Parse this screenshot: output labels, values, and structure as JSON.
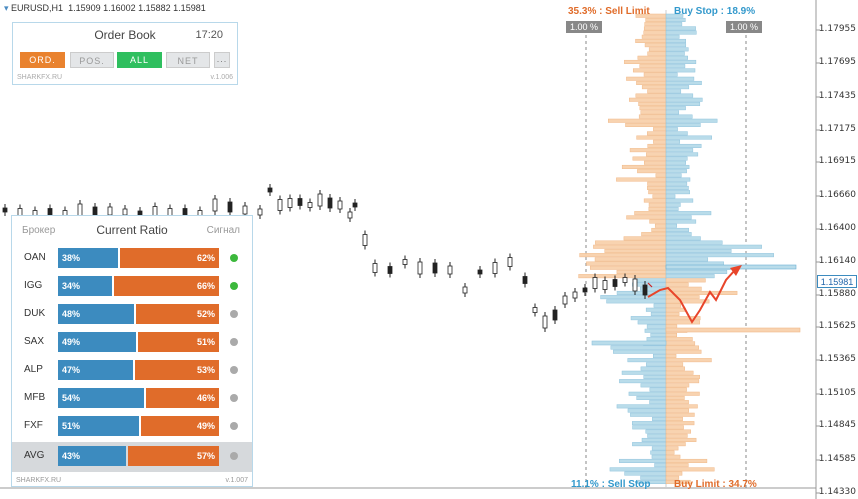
{
  "header": {
    "symbol": "EURUSD,H1",
    "ohlc": "1.15909 1.16002 1.15882 1.15981"
  },
  "price_axis": {
    "labels": [
      "1.17955",
      "1.17695",
      "1.17435",
      "1.17175",
      "1.16915",
      "1.16660",
      "1.16400",
      "1.16140",
      "1.15981",
      "1.15880",
      "1.15625",
      "1.15365",
      "1.15105",
      "1.14845",
      "1.14585",
      "1.14330"
    ],
    "current_price": "1.15981"
  },
  "order_book": {
    "title": "Order Book",
    "time": "17:20",
    "buttons": {
      "ord": "ORD.",
      "pos": "POS.",
      "all": "ALL",
      "net": "NET",
      "more": "..."
    },
    "brand": "SHARKFX.RU",
    "version": "v.1.006"
  },
  "current_ratio": {
    "col_broker": "Брокер",
    "title": "Current Ratio",
    "col_signal": "Сигнал",
    "brand": "SHARKFX.RU",
    "version": "v.1.007",
    "rows": [
      {
        "name": "OAN",
        "buy": "38%",
        "sell": "62%",
        "buy_frac": 0.38,
        "signal": "#3cb83c"
      },
      {
        "name": "IGG",
        "buy": "34%",
        "sell": "66%",
        "buy_frac": 0.34,
        "signal": "#3cb83c"
      },
      {
        "name": "DUK",
        "buy": "48%",
        "sell": "52%",
        "buy_frac": 0.48,
        "signal": "#aaaaaa"
      },
      {
        "name": "SAX",
        "buy": "49%",
        "sell": "51%",
        "buy_frac": 0.49,
        "signal": "#aaaaaa"
      },
      {
        "name": "ALP",
        "buy": "47%",
        "sell": "53%",
        "buy_frac": 0.47,
        "signal": "#aaaaaa"
      },
      {
        "name": "MFB",
        "buy": "54%",
        "sell": "46%",
        "buy_frac": 0.54,
        "signal": "#aaaaaa"
      },
      {
        "name": "FXF",
        "buy": "51%",
        "sell": "49%",
        "buy_frac": 0.51,
        "signal": "#aaaaaa"
      },
      {
        "name": "AVG",
        "buy": "43%",
        "sell": "57%",
        "buy_frac": 0.43,
        "signal": "#aaaaaa"
      }
    ]
  },
  "book_labels": {
    "sell_limit": "35.3% : Sell Limit",
    "buy_stop": "Buy Stop : 18.9%",
    "sell_stop": "11.1% : Sell Stop",
    "buy_limit": "Buy Limit : 34.7%",
    "left_pct": "1.00 %",
    "right_pct": "1.00 %"
  },
  "colors": {
    "buy": "#3c8bbf",
    "sell": "#e06c2a",
    "book_buy": "#b9dcea",
    "book_sell": "#f8d3b0",
    "green": "#3cb83c"
  }
}
